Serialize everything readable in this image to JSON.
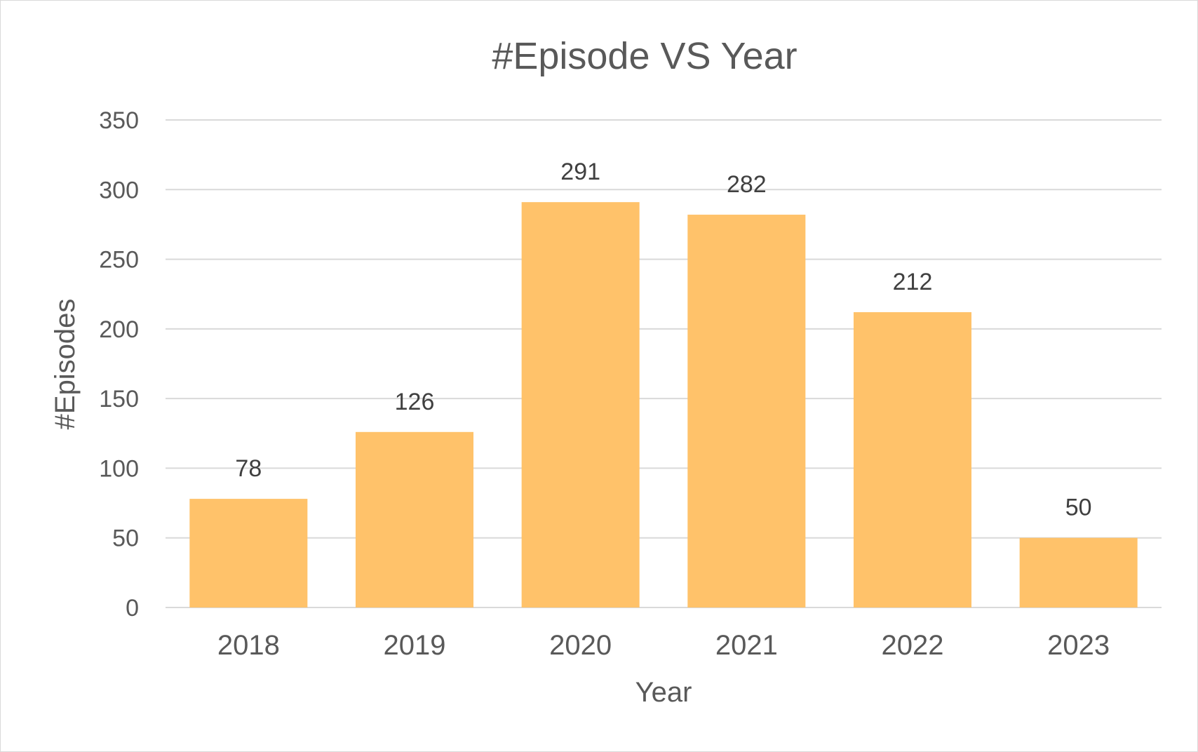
{
  "chart_data": {
    "type": "bar",
    "title": "#Episode VS Year",
    "xlabel": "Year",
    "ylabel": "#Episodes",
    "categories": [
      "2018",
      "2019",
      "2020",
      "2021",
      "2022",
      "2023"
    ],
    "values": [
      78,
      126,
      291,
      282,
      212,
      50
    ],
    "data_labels": [
      "78",
      "126",
      "291",
      "282",
      "212",
      "50"
    ],
    "ylim": [
      0,
      350
    ],
    "yticks": [
      0,
      50,
      100,
      150,
      200,
      250,
      300,
      350
    ],
    "ytick_labels": [
      "0",
      "50",
      "100",
      "150",
      "200",
      "250",
      "300",
      "350"
    ],
    "grid": true,
    "legend": "none",
    "colors": {
      "bar": "#FFC26A",
      "grid": "#d9d9d9",
      "text": "#595959"
    }
  }
}
